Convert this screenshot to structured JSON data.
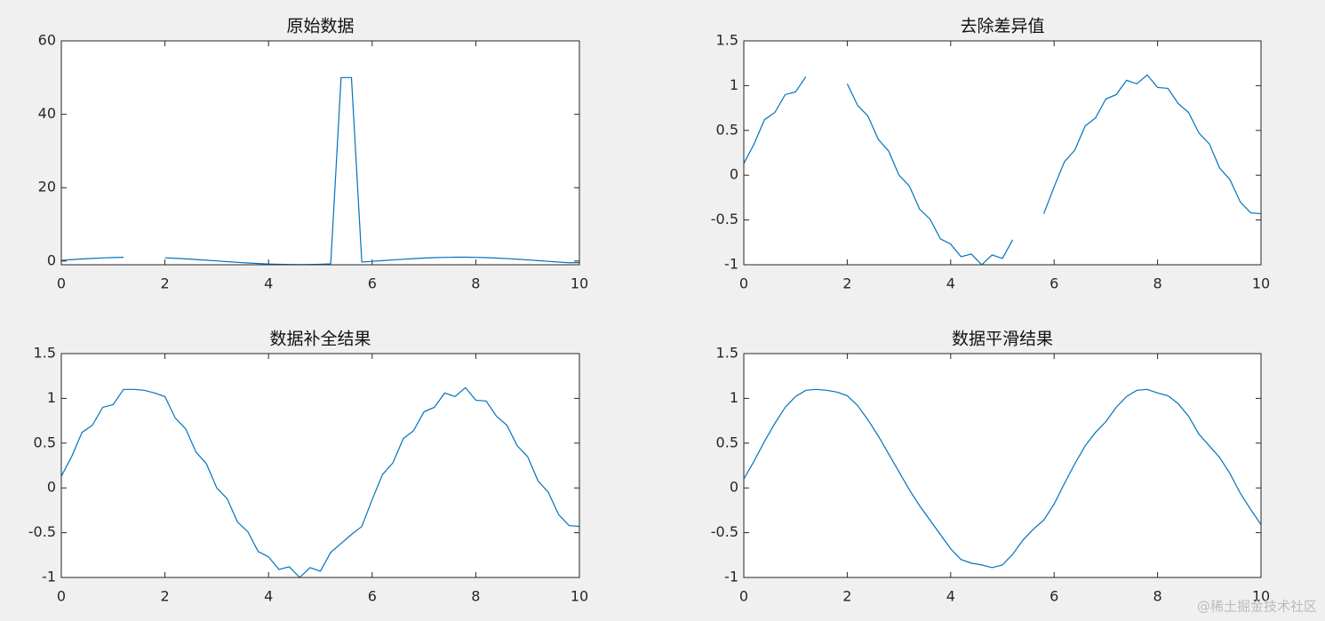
{
  "chart_data": [
    {
      "type": "line",
      "title": "原始数据",
      "color": "#0072bd",
      "x": [
        0,
        0.2,
        0.4,
        0.6,
        0.8,
        1,
        1.2,
        1.4,
        1.6,
        1.8,
        2,
        2.2,
        2.4,
        2.6,
        2.8,
        3,
        3.2,
        3.4,
        3.6,
        3.8,
        4,
        4.2,
        4.4,
        4.6,
        4.8,
        5,
        5.2,
        5.4,
        5.6,
        5.8,
        6,
        6.2,
        6.4,
        6.6,
        6.8,
        7,
        7.2,
        7.4,
        7.6,
        7.8,
        8,
        8.2,
        8.4,
        8.6,
        8.8,
        9,
        9.2,
        9.4,
        9.6,
        9.8,
        10
      ],
      "values": [
        0.2,
        0.39,
        0.57,
        0.73,
        0.86,
        0.96,
        1.03,
        null,
        null,
        null,
        0.89,
        0.76,
        0.61,
        0.43,
        0.24,
        0.04,
        -0.16,
        -0.35,
        -0.52,
        -0.67,
        -0.8,
        -0.88,
        -0.94,
        -0.95,
        -0.92,
        -0.86,
        -0.76,
        50,
        50,
        -0.28,
        -0.08,
        0.12,
        0.32,
        0.5,
        0.67,
        0.81,
        0.93,
        1.01,
        1.05,
        1.05,
        1.01,
        0.94,
        0.82,
        0.68,
        0.51,
        0.32,
        0.12,
        -0.08,
        -0.27,
        -0.45,
        -0.43
      ],
      "xlim": [
        0,
        10
      ],
      "xticks": [
        0,
        2,
        4,
        6,
        8,
        10
      ],
      "ylim": [
        -1,
        60
      ],
      "yticks": [
        0,
        20,
        40,
        60
      ]
    },
    {
      "type": "line",
      "title": "去除差异值",
      "color": "#0072bd",
      "x": [
        0,
        0.2,
        0.4,
        0.6,
        0.8,
        1,
        1.2,
        1.4,
        1.6,
        1.8,
        2,
        2.2,
        2.4,
        2.6,
        2.8,
        3,
        3.2,
        3.4,
        3.6,
        3.8,
        4,
        4.2,
        4.4,
        4.6,
        4.8,
        5,
        5.2,
        5.4,
        5.6,
        5.8,
        6,
        6.2,
        6.4,
        6.6,
        6.8,
        7,
        7.2,
        7.4,
        7.6,
        7.8,
        8,
        8.2,
        8.4,
        8.6,
        8.8,
        9,
        9.2,
        9.4,
        9.6,
        9.8,
        10
      ],
      "values": [
        0.13,
        0.35,
        0.62,
        0.7,
        0.9,
        0.93,
        1.1,
        null,
        null,
        null,
        1.02,
        0.78,
        0.66,
        0.4,
        0.27,
        0,
        -0.12,
        -0.38,
        -0.49,
        -0.71,
        -0.77,
        -0.91,
        -0.88,
        -1,
        -0.89,
        -0.93,
        -0.72,
        null,
        null,
        -0.43,
        -0.13,
        0.15,
        0.28,
        0.55,
        0.64,
        0.85,
        0.9,
        1.06,
        1.02,
        1.12,
        0.98,
        0.97,
        0.8,
        0.7,
        0.47,
        0.35,
        0.08,
        -0.05,
        -0.3,
        -0.42,
        -0.43
      ],
      "xlim": [
        0,
        10
      ],
      "xticks": [
        0,
        2,
        4,
        6,
        8,
        10
      ],
      "ylim": [
        -1,
        1.5
      ],
      "yticks": [
        -1,
        -0.5,
        0,
        0.5,
        1,
        1.5
      ]
    },
    {
      "type": "line",
      "title": "数据补全结果",
      "color": "#0072bd",
      "x": [
        0,
        0.2,
        0.4,
        0.6,
        0.8,
        1,
        1.2,
        1.4,
        1.6,
        1.8,
        2,
        2.2,
        2.4,
        2.6,
        2.8,
        3,
        3.2,
        3.4,
        3.6,
        3.8,
        4,
        4.2,
        4.4,
        4.6,
        4.8,
        5,
        5.2,
        5.4,
        5.6,
        5.8,
        6,
        6.2,
        6.4,
        6.6,
        6.8,
        7,
        7.2,
        7.4,
        7.6,
        7.8,
        8,
        8.2,
        8.4,
        8.6,
        8.8,
        9,
        9.2,
        9.4,
        9.6,
        9.8,
        10
      ],
      "values": [
        0.13,
        0.35,
        0.62,
        0.7,
        0.9,
        0.93,
        1.1,
        1.1,
        1.09,
        1.06,
        1.02,
        0.78,
        0.66,
        0.4,
        0.27,
        0,
        -0.12,
        -0.38,
        -0.49,
        -0.71,
        -0.77,
        -0.91,
        -0.88,
        -1,
        -0.89,
        -0.93,
        -0.72,
        -0.62,
        -0.52,
        -0.43,
        -0.13,
        0.15,
        0.28,
        0.55,
        0.64,
        0.85,
        0.9,
        1.06,
        1.02,
        1.12,
        0.98,
        0.97,
        0.8,
        0.7,
        0.47,
        0.35,
        0.08,
        -0.05,
        -0.3,
        -0.42,
        -0.43
      ],
      "xlim": [
        0,
        10
      ],
      "xticks": [
        0,
        2,
        4,
        6,
        8,
        10
      ],
      "ylim": [
        -1,
        1.5
      ],
      "yticks": [
        -1,
        -0.5,
        0,
        0.5,
        1,
        1.5
      ]
    },
    {
      "type": "line",
      "title": "数据平滑结果",
      "color": "#0072bd",
      "x": [
        0,
        0.2,
        0.4,
        0.6,
        0.8,
        1,
        1.2,
        1.4,
        1.6,
        1.8,
        2,
        2.2,
        2.4,
        2.6,
        2.8,
        3,
        3.2,
        3.4,
        3.6,
        3.8,
        4,
        4.2,
        4.4,
        4.6,
        4.8,
        5,
        5.2,
        5.4,
        5.6,
        5.8,
        6,
        6.2,
        6.4,
        6.6,
        6.8,
        7,
        7.2,
        7.4,
        7.6,
        7.8,
        8,
        8.2,
        8.4,
        8.6,
        8.8,
        9,
        9.2,
        9.4,
        9.6,
        9.8,
        10
      ],
      "values": [
        0.1,
        0.3,
        0.52,
        0.72,
        0.9,
        1.02,
        1.09,
        1.1,
        1.09,
        1.07,
        1.03,
        0.92,
        0.76,
        0.58,
        0.38,
        0.18,
        -0.02,
        -0.2,
        -0.36,
        -0.52,
        -0.68,
        -0.8,
        -0.84,
        -0.86,
        -0.89,
        -0.86,
        -0.74,
        -0.58,
        -0.46,
        -0.36,
        -0.18,
        0.05,
        0.27,
        0.47,
        0.62,
        0.74,
        0.9,
        1.02,
        1.09,
        1.1,
        1.06,
        1.03,
        0.94,
        0.8,
        0.6,
        0.47,
        0.34,
        0.16,
        -0.06,
        -0.24,
        -0.41
      ],
      "xlim": [
        0,
        10
      ],
      "xticks": [
        0,
        2,
        4,
        6,
        8,
        10
      ],
      "ylim": [
        -1,
        1.5
      ],
      "yticks": [
        -1,
        -0.5,
        0,
        0.5,
        1,
        1.5
      ]
    }
  ],
  "watermark": "@稀土掘金技术社区"
}
